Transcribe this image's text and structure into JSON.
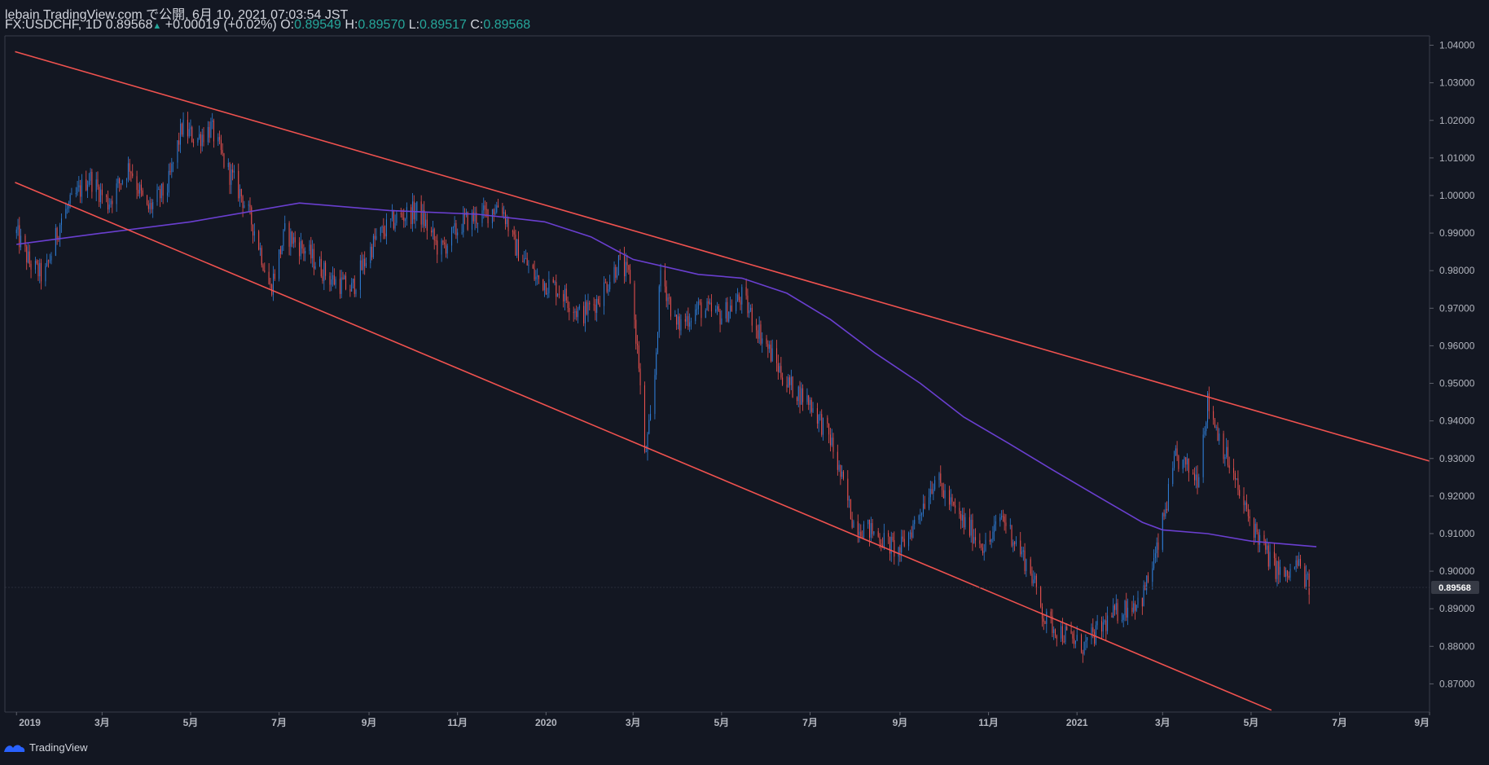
{
  "header": {
    "line1": "lebain TradingView.com で公開, 6月 10, 2021 07:03:54 JST",
    "symbol": "FX:USDCHF, 1D",
    "price": "0.89568",
    "change": "+0.00019 (+0.02%)",
    "o_label": "O:",
    "o_value": "0.89549",
    "h_label": "H:",
    "h_value": "0.89570",
    "l_label": "L:",
    "l_value": "0.89517",
    "c_label": "C:",
    "c_value": "0.89568"
  },
  "footer": {
    "brand": "TradingView"
  },
  "colors": {
    "background": "#131722",
    "up": "#2f7fd9",
    "down": "#ef5350",
    "trendline": "#f0524f",
    "moving_average": "#6a3fd0",
    "axis_text": "#b2b5be",
    "last_price_bg": "#363a45"
  },
  "chart_data": {
    "type": "candlestick",
    "y_ticks": [
      "1.04000",
      "1.03000",
      "1.02000",
      "1.01000",
      "1.00000",
      "0.99000",
      "0.98000",
      "0.97000",
      "0.96000",
      "0.95000",
      "0.94000",
      "0.93000",
      "0.92000",
      "0.91000",
      "0.90000",
      "0.89000",
      "0.88000",
      "0.87000"
    ],
    "x_ticks": [
      "2019",
      "3月",
      "5月",
      "7月",
      "9月",
      "11月",
      "2020",
      "3月",
      "5月",
      "7月",
      "9月",
      "11月",
      "2021",
      "3月",
      "5月",
      "7月",
      "9月"
    ],
    "last_price_label": "0.89568",
    "ylim": [
      0.8625,
      1.0425
    ],
    "close_path": [
      [
        "2019-01-01",
        0.99
      ],
      [
        "2019-01-10",
        0.982
      ],
      [
        "2019-01-20",
        0.978
      ],
      [
        "2019-02-01",
        0.994
      ],
      [
        "2019-02-20",
        1.005
      ],
      [
        "2019-03-05",
        0.998
      ],
      [
        "2019-03-20",
        1.008
      ],
      [
        "2019-04-01",
        0.996
      ],
      [
        "2019-04-15",
        1.002
      ],
      [
        "2019-04-25",
        1.018
      ],
      [
        "2019-05-05",
        1.015
      ],
      [
        "2019-05-15",
        1.018
      ],
      [
        "2019-05-25",
        1.008
      ],
      [
        "2019-06-05",
        1.0
      ],
      [
        "2019-06-15",
        0.99
      ],
      [
        "2019-06-25",
        0.975
      ],
      [
        "2019-07-05",
        0.99
      ],
      [
        "2019-07-20",
        0.985
      ],
      [
        "2019-08-05",
        0.978
      ],
      [
        "2019-08-20",
        0.975
      ],
      [
        "2019-09-05",
        0.988
      ],
      [
        "2019-09-20",
        0.994
      ],
      [
        "2019-10-05",
        0.996
      ],
      [
        "2019-10-20",
        0.985
      ],
      [
        "2019-11-05",
        0.993
      ],
      [
        "2019-11-20",
        0.995
      ],
      [
        "2019-12-01",
        0.998
      ],
      [
        "2019-12-10",
        0.987
      ],
      [
        "2019-12-25",
        0.978
      ],
      [
        "2020-01-10",
        0.975
      ],
      [
        "2020-01-25",
        0.968
      ],
      [
        "2020-02-05",
        0.972
      ],
      [
        "2020-02-20",
        0.982
      ],
      [
        "2020-02-28",
        0.978
      ],
      [
        "2020-03-05",
        0.955
      ],
      [
        "2020-03-09",
        0.93
      ],
      [
        "2020-03-15",
        0.945
      ],
      [
        "2020-03-20",
        0.98
      ],
      [
        "2020-03-31",
        0.965
      ],
      [
        "2020-04-15",
        0.97
      ],
      [
        "2020-05-01",
        0.968
      ],
      [
        "2020-05-15",
        0.973
      ],
      [
        "2020-06-01",
        0.96
      ],
      [
        "2020-06-15",
        0.95
      ],
      [
        "2020-07-01",
        0.945
      ],
      [
        "2020-07-15",
        0.935
      ],
      [
        "2020-07-31",
        0.913
      ],
      [
        "2020-08-15",
        0.91
      ],
      [
        "2020-08-31",
        0.905
      ],
      [
        "2020-09-10",
        0.912
      ],
      [
        "2020-09-25",
        0.925
      ],
      [
        "2020-10-10",
        0.915
      ],
      [
        "2020-10-31",
        0.906
      ],
      [
        "2020-11-10",
        0.915
      ],
      [
        "2020-11-30",
        0.9
      ],
      [
        "2020-12-10",
        0.887
      ],
      [
        "2020-12-31",
        0.881
      ],
      [
        "2021-01-06",
        0.88
      ],
      [
        "2021-01-25",
        0.888
      ],
      [
        "2021-02-15",
        0.893
      ],
      [
        "2021-02-25",
        0.905
      ],
      [
        "2021-03-10",
        0.93
      ],
      [
        "2021-03-25",
        0.925
      ],
      [
        "2021-04-01",
        0.945
      ],
      [
        "2021-04-10",
        0.935
      ],
      [
        "2021-04-25",
        0.918
      ],
      [
        "2021-05-05",
        0.91
      ],
      [
        "2021-05-15",
        0.902
      ],
      [
        "2021-05-25",
        0.898
      ],
      [
        "2021-06-02",
        0.902
      ],
      [
        "2021-06-10",
        0.8957
      ]
    ],
    "moving_average": [
      [
        "2019-01-01",
        0.987
      ],
      [
        "2019-03-01",
        0.99
      ],
      [
        "2019-05-01",
        0.993
      ],
      [
        "2019-06-15",
        0.996
      ],
      [
        "2019-07-15",
        0.998
      ],
      [
        "2019-09-15",
        0.996
      ],
      [
        "2019-11-15",
        0.995
      ],
      [
        "2019-12-31",
        0.993
      ],
      [
        "2020-02-01",
        0.989
      ],
      [
        "2020-03-01",
        0.983
      ],
      [
        "2020-04-15",
        0.979
      ],
      [
        "2020-05-15",
        0.978
      ],
      [
        "2020-06-15",
        0.974
      ],
      [
        "2020-07-15",
        0.967
      ],
      [
        "2020-08-15",
        0.958
      ],
      [
        "2020-09-15",
        0.95
      ],
      [
        "2020-10-15",
        0.941
      ],
      [
        "2020-11-15",
        0.934
      ],
      [
        "2020-12-15",
        0.927
      ],
      [
        "2021-01-15",
        0.92
      ],
      [
        "2021-02-15",
        0.913
      ],
      [
        "2021-03-01",
        0.911
      ],
      [
        "2021-04-01",
        0.91
      ],
      [
        "2021-05-01",
        0.908
      ],
      [
        "2021-06-15",
        0.9065
      ]
    ],
    "trendlines": [
      {
        "from": [
          "2018-12-31",
          1.0383
        ],
        "to": [
          "2021-09-01",
          0.9293
        ]
      },
      {
        "from": [
          "2018-12-31",
          1.0035
        ],
        "to": [
          "2021-05-15",
          0.863
        ]
      }
    ]
  }
}
